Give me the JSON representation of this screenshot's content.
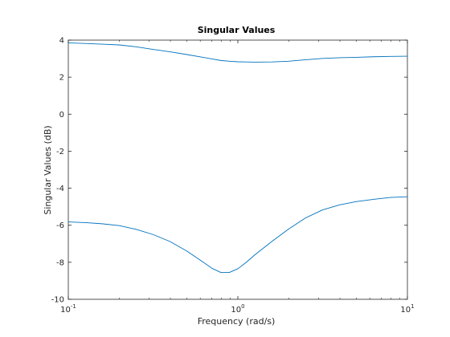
{
  "chart_data": {
    "type": "line",
    "title": "Singular Values",
    "xlabel": "Frequency (rad/s)",
    "ylabel": "Singular Values (dB)",
    "xscale": "log",
    "xlim": [
      0.1,
      10
    ],
    "ylim": [
      -10,
      4
    ],
    "grid": false,
    "x_ticks": [
      {
        "value": 0.1,
        "base": "10",
        "exp": "-1"
      },
      {
        "value": 1,
        "base": "10",
        "exp": "0"
      },
      {
        "value": 10,
        "base": "10",
        "exp": "1"
      }
    ],
    "y_ticks": [
      "-10",
      "-8",
      "-6",
      "-4",
      "-2",
      "0",
      "2",
      "4"
    ],
    "series_color": "#0072BD",
    "series": [
      {
        "x": [
          0.1,
          0.126,
          0.158,
          0.2,
          0.251,
          0.316,
          0.398,
          0.501,
          0.631,
          0.708,
          0.794,
          0.891,
          1.0,
          1.122,
          1.259,
          1.585,
          1.995,
          2.512,
          3.162,
          3.981,
          5.012,
          6.31,
          7.943,
          10.0
        ],
        "y": [
          3.85,
          3.82,
          3.78,
          3.74,
          3.64,
          3.5,
          3.37,
          3.22,
          3.06,
          2.98,
          2.9,
          2.86,
          2.83,
          2.82,
          2.81,
          2.82,
          2.86,
          2.94,
          3.01,
          3.05,
          3.07,
          3.1,
          3.12,
          3.13
        ]
      },
      {
        "x": [
          0.1,
          0.126,
          0.158,
          0.2,
          0.251,
          0.316,
          0.398,
          0.501,
          0.631,
          0.708,
          0.794,
          0.891,
          1.0,
          1.122,
          1.259,
          1.585,
          1.995,
          2.512,
          3.162,
          3.981,
          5.012,
          6.31,
          7.943,
          10.0
        ],
        "y": [
          -5.82,
          -5.86,
          -5.92,
          -6.02,
          -6.22,
          -6.5,
          -6.88,
          -7.4,
          -8.02,
          -8.34,
          -8.55,
          -8.55,
          -8.35,
          -8.0,
          -7.6,
          -6.88,
          -6.2,
          -5.6,
          -5.17,
          -4.9,
          -4.72,
          -4.6,
          -4.5,
          -4.46
        ]
      }
    ]
  }
}
